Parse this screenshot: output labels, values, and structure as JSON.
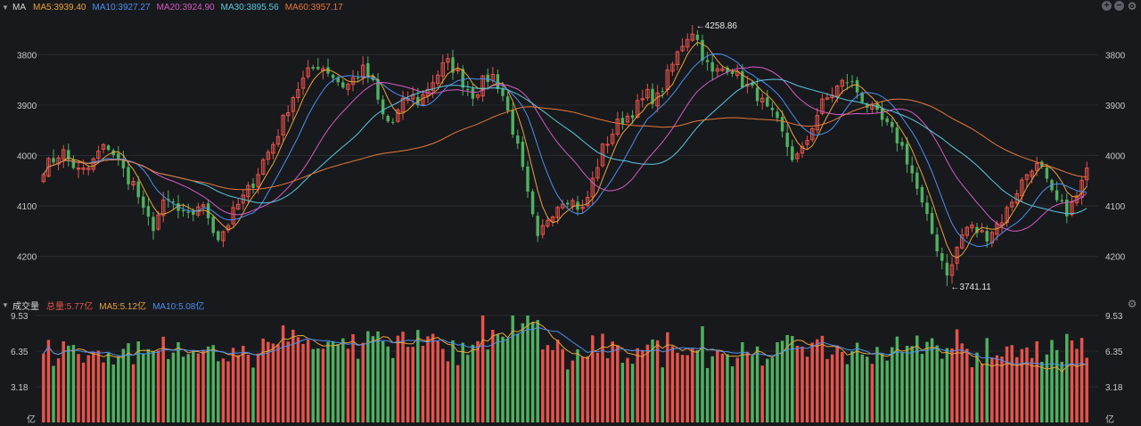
{
  "main_panel": {
    "title": "MA",
    "legend": [
      {
        "label": "MA5:3939.40",
        "color": "#e8a33a"
      },
      {
        "label": "MA10:3927.27",
        "color": "#4d8ff0"
      },
      {
        "label": "MA20:3924.90",
        "color": "#d45bc4"
      },
      {
        "label": "MA30:3895.56",
        "color": "#58c8e0"
      },
      {
        "label": "MA60:3957.17",
        "color": "#e6783a"
      }
    ],
    "tools": [
      "+",
      "−"
    ],
    "y_ticks": [
      "4200",
      "4100",
      "4000",
      "3900",
      "3800"
    ],
    "high_label": "←4258.86",
    "low_label": "←3741.11"
  },
  "volume_panel": {
    "title": "成交量",
    "legend": [
      {
        "label": "总量:5.77亿",
        "color": "#e5534b"
      },
      {
        "label": "MA5:5.12亿",
        "color": "#e8a33a"
      },
      {
        "label": "MA10:5.08亿",
        "color": "#4d8ff0"
      }
    ],
    "y_ticks": [
      "9.53",
      "6.35",
      "3.18",
      "亿"
    ]
  },
  "colors": {
    "up": "#e5534b",
    "down": "#4fb160",
    "bg": "#18191c",
    "grid": "#2a2b30"
  },
  "chart_data": [
    {
      "type": "candlestick",
      "title": "",
      "ylim": [
        3720,
        4280
      ],
      "y_ticks": [
        3800,
        3900,
        4000,
        4100,
        4200
      ],
      "high": 4258.86,
      "low": 3741.11,
      "series": [
        {
          "name": "MA5",
          "last": 3939.4
        },
        {
          "name": "MA10",
          "last": 3927.27
        },
        {
          "name": "MA20",
          "last": 3924.9
        },
        {
          "name": "MA30",
          "last": 3895.56
        },
        {
          "name": "MA60",
          "last": 3957.17
        }
      ],
      "close_path": [
        3975,
        3990,
        4010,
        3985,
        3965,
        3975,
        4005,
        4020,
        3995,
        3960,
        3940,
        3880,
        3860,
        3900,
        3910,
        3880,
        3875,
        3905,
        3880,
        3835,
        3860,
        3895,
        3920,
        3950,
        3990,
        4020,
        4060,
        4110,
        4140,
        4165,
        4180,
        4170,
        4150,
        4135,
        4155,
        4170,
        4140,
        4080,
        4060,
        4095,
        4120,
        4105,
        4135,
        4160,
        4185,
        4170,
        4140,
        4120,
        4145,
        4160,
        4130,
        4070,
        4000,
        3910,
        3830,
        3875,
        3900,
        3920,
        3905,
        3890,
        3950,
        4010,
        4040,
        4070,
        4080,
        4100,
        4120,
        4110,
        4150,
        4190,
        4230,
        4250,
        4200,
        4160,
        4170,
        4180,
        4150,
        4135,
        4120,
        4090,
        4070,
        4030,
        3990,
        4010,
        4060,
        4100,
        4120,
        4140,
        4150,
        4125,
        4100,
        4080,
        4060,
        4040,
        4010,
        3960,
        3900,
        3850,
        3800,
        3760,
        3830,
        3860,
        3850,
        3840,
        3860,
        3880,
        3920,
        3950,
        3980,
        3975,
        3925,
        3900,
        3890,
        3920,
        3975
      ],
      "last_close": 3975
    },
    {
      "type": "bar",
      "title": "",
      "ylabel": "亿",
      "ylim": [
        0,
        9.53
      ],
      "y_ticks": [
        3.18,
        6.35,
        9.53
      ],
      "series": [
        {
          "name": "总量",
          "last": 5.77
        },
        {
          "name": "MA5",
          "last": 5.12
        },
        {
          "name": "MA10",
          "last": 5.08
        }
      ]
    }
  ]
}
